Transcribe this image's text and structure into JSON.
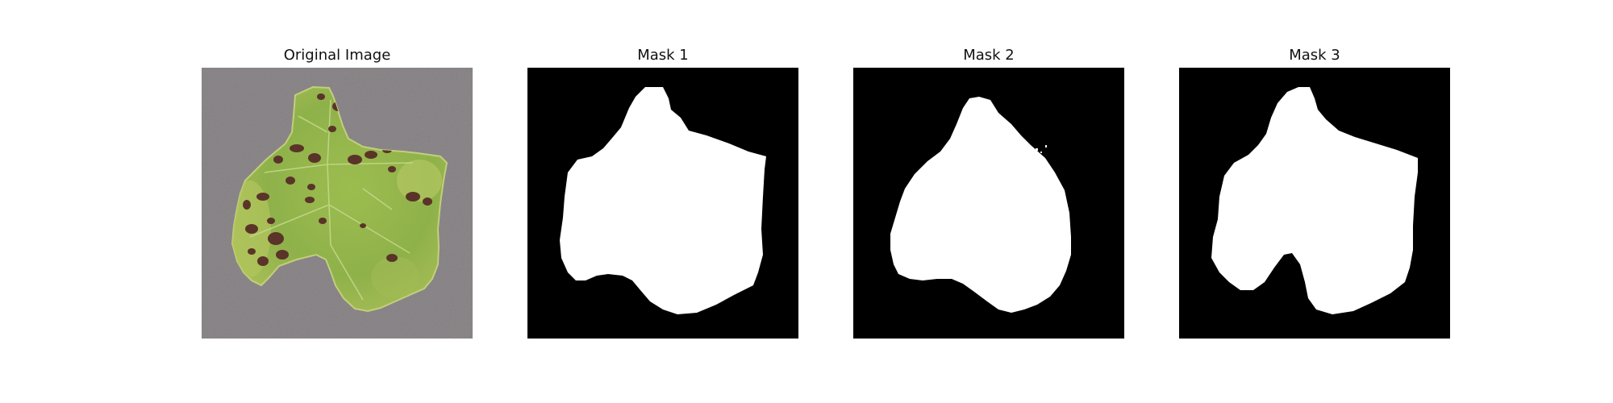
{
  "figure": {
    "panels": [
      {
        "title": "Original Image",
        "content": "photo"
      },
      {
        "title": "Mask 1",
        "content": "mask"
      },
      {
        "title": "Mask 2",
        "content": "mask"
      },
      {
        "title": "Mask 3",
        "content": "mask"
      }
    ]
  },
  "colors": {
    "background": "#ffffff",
    "mask_background": "#000000",
    "mask_foreground": "#ffffff",
    "photo_surface": "#8c878a",
    "leaf_green": "#8fb14a",
    "leaf_light": "#b2c45c",
    "lesion_dark": "#5a3428"
  }
}
